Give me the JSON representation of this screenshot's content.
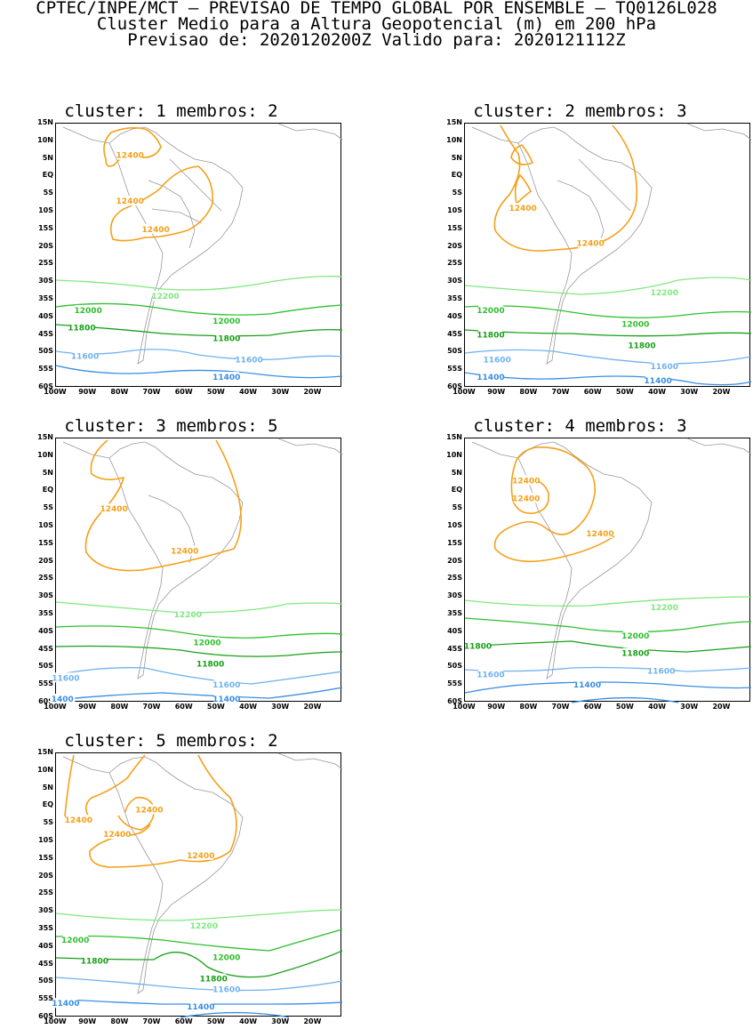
{
  "header": {
    "line1": "CPTEC/INPE/MCT – PREVISAO DE TEMPO GLOBAL POR ENSEMBLE – TQ0126L028",
    "line2": "Cluster Medio para a Altura Geopotencial (m) em 200 hPa",
    "line3": "Previsao de: 2020120200Z    Valido para: 2020121112Z"
  },
  "axes": {
    "y_ticks": [
      "15N",
      "10N",
      "5N",
      "EQ",
      "5S",
      "10S",
      "15S",
      "20S",
      "25S",
      "30S",
      "35S",
      "40S",
      "45S",
      "50S",
      "55S",
      "60S"
    ],
    "x_ticks": [
      "100W",
      "90W",
      "80W",
      "70W",
      "60W",
      "50W",
      "40W",
      "30W",
      "20W"
    ],
    "lat_range": [
      -60,
      15
    ],
    "lon_range": [
      -100,
      -11
    ]
  },
  "contour_colors": {
    "12400": "#f5a01a",
    "12200": "#7fe87f",
    "12000": "#2fc02f",
    "11800": "#17a017",
    "11600": "#6fb2f0",
    "11400": "#3a8ee0"
  },
  "panels": [
    {
      "title": "cluster:  1   membros:  2",
      "contour_labels": [
        {
          "text": "12400",
          "lon": -77,
          "lat": 6
        },
        {
          "text": "12400",
          "lon": -77,
          "lat": -7
        },
        {
          "text": "12400",
          "lon": -69,
          "lat": -15
        },
        {
          "text": "12200",
          "lon": -66,
          "lat": -34
        },
        {
          "text": "12000",
          "lon": -90,
          "lat": -38
        },
        {
          "text": "12000",
          "lon": -47,
          "lat": -41
        },
        {
          "text": "11800",
          "lon": -92,
          "lat": -43
        },
        {
          "text": "11800",
          "lon": -47,
          "lat": -46
        },
        {
          "text": "11600",
          "lon": -91,
          "lat": -51
        },
        {
          "text": "11600",
          "lon": -40,
          "lat": -52
        },
        {
          "text": "11400",
          "lon": -47,
          "lat": -57
        }
      ]
    },
    {
      "title": "cluster:  2   membros:  3",
      "contour_labels": [
        {
          "text": "12400",
          "lon": -82,
          "lat": -9
        },
        {
          "text": "12400",
          "lon": -61,
          "lat": -19
        },
        {
          "text": "12200",
          "lon": -38,
          "lat": -33
        },
        {
          "text": "12000",
          "lon": -92,
          "lat": -38
        },
        {
          "text": "12000",
          "lon": -47,
          "lat": -42
        },
        {
          "text": "11800",
          "lon": -92,
          "lat": -45
        },
        {
          "text": "11800",
          "lon": -45,
          "lat": -48
        },
        {
          "text": "11600",
          "lon": -90,
          "lat": -52
        },
        {
          "text": "11600",
          "lon": -38,
          "lat": -54
        },
        {
          "text": "11400",
          "lon": -92,
          "lat": -57
        },
        {
          "text": "11400",
          "lon": -40,
          "lat": -58
        }
      ]
    },
    {
      "title": "cluster:  3   membros:  5",
      "contour_labels": [
        {
          "text": "12400",
          "lon": -82,
          "lat": -5
        },
        {
          "text": "12400",
          "lon": -60,
          "lat": -17
        },
        {
          "text": "12200",
          "lon": -59,
          "lat": -35
        },
        {
          "text": "12000",
          "lon": -53,
          "lat": -43
        },
        {
          "text": "11800",
          "lon": -52,
          "lat": -49
        },
        {
          "text": "11600",
          "lon": -97,
          "lat": -53
        },
        {
          "text": "11600",
          "lon": -47,
          "lat": -55
        },
        {
          "text": "11400",
          "lon": -47,
          "lat": -59
        },
        {
          "text": "1400",
          "lon": -98,
          "lat": -59
        }
      ]
    },
    {
      "title": "cluster:  4   membros:  3",
      "contour_labels": [
        {
          "text": "12400",
          "lon": -81,
          "lat": 3
        },
        {
          "text": "12400",
          "lon": -81,
          "lat": -2
        },
        {
          "text": "12400",
          "lon": -58,
          "lat": -12
        },
        {
          "text": "12200",
          "lon": -38,
          "lat": -33
        },
        {
          "text": "12000",
          "lon": -47,
          "lat": -41
        },
        {
          "text": "11800",
          "lon": -96,
          "lat": -44
        },
        {
          "text": "11800",
          "lon": -47,
          "lat": -46
        },
        {
          "text": "11600",
          "lon": -92,
          "lat": -52
        },
        {
          "text": "11600",
          "lon": -39,
          "lat": -51
        },
        {
          "text": "11400",
          "lon": -62,
          "lat": -55
        }
      ]
    },
    {
      "title": "cluster:  5   membros:  2",
      "contour_labels": [
        {
          "text": "12400",
          "lon": -93,
          "lat": -4
        },
        {
          "text": "12400",
          "lon": -81,
          "lat": -8
        },
        {
          "text": "12400",
          "lon": -71,
          "lat": -1
        },
        {
          "text": "12400",
          "lon": -55,
          "lat": -14
        },
        {
          "text": "12200",
          "lon": -54,
          "lat": -34
        },
        {
          "text": "12000",
          "lon": -94,
          "lat": -38
        },
        {
          "text": "12000",
          "lon": -47,
          "lat": -43
        },
        {
          "text": "11800",
          "lon": -88,
          "lat": -44
        },
        {
          "text": "11800",
          "lon": -51,
          "lat": -49
        },
        {
          "text": "11600",
          "lon": -47,
          "lat": -52
        },
        {
          "text": "11400",
          "lon": -97,
          "lat": -56
        },
        {
          "text": "11400",
          "lon": -55,
          "lat": -57
        }
      ]
    }
  ]
}
